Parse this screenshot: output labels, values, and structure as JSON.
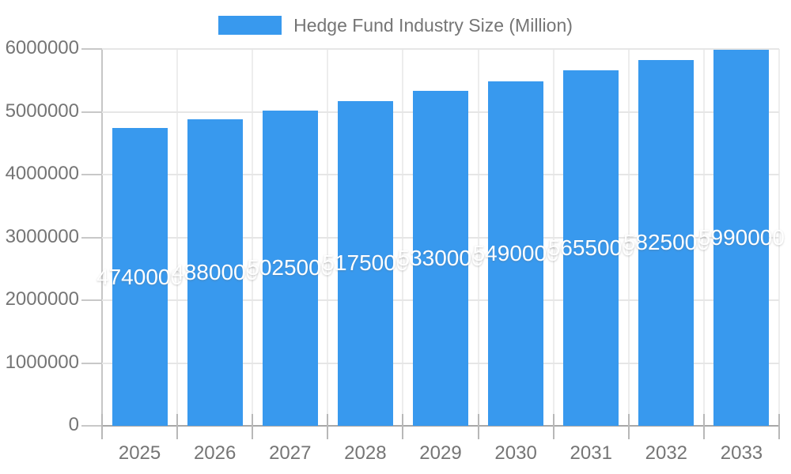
{
  "chart_data": {
    "type": "bar",
    "title": "Hedge Fund Industry Size (Million)",
    "legend_position": "top",
    "grid": true,
    "categories": [
      "2025",
      "2026",
      "2027",
      "2028",
      "2029",
      "2030",
      "2031",
      "2032",
      "2033"
    ],
    "series": [
      {
        "name": "Hedge Fund Industry Size (Million)",
        "values": [
          4740000,
          4880000,
          5025000,
          5175000,
          5330000,
          5490000,
          5655000,
          5825000,
          5990000
        ]
      }
    ],
    "value_labels": [
      "4740000",
      "4880000",
      "5025000",
      "5175000",
      "5330000",
      "5490000",
      "5655000",
      "5825000",
      "5990000"
    ],
    "xlabel": "",
    "ylabel": "",
    "ylim": [
      0,
      6000000
    ],
    "y_ticks": [
      0,
      1000000,
      2000000,
      3000000,
      4000000,
      5000000,
      6000000
    ],
    "y_tick_labels": [
      "0",
      "1000000",
      "2000000",
      "3000000",
      "4000000",
      "5000000",
      "6000000"
    ]
  },
  "colors": {
    "bar": "#3899ee",
    "value_label": "#ffffff",
    "axis_text": "#757575",
    "gridline": "#e6e6e6",
    "axis_line": "#a8a8a8",
    "background": "#ffffff"
  }
}
